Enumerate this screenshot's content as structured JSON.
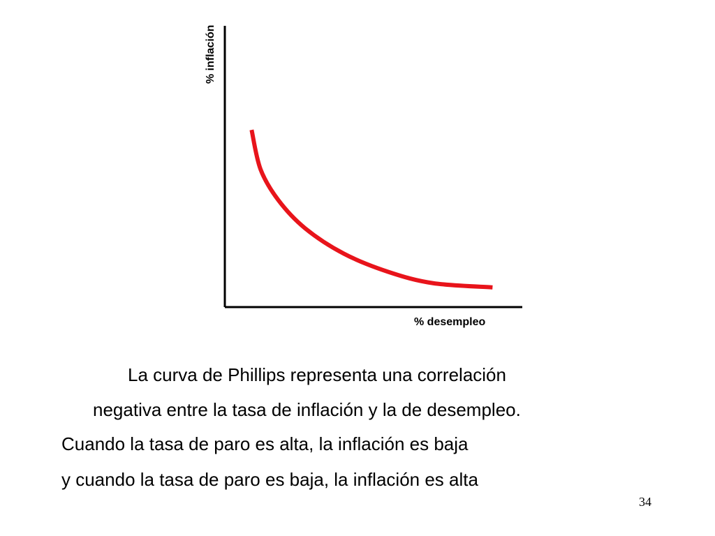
{
  "chart_data": {
    "type": "line",
    "title": "",
    "xlabel": "% desempleo",
    "ylabel": "% inflación",
    "grid": false,
    "legend": "none",
    "axis_ticks": false,
    "curve_color": "#e8141b",
    "axis_color": "#000000",
    "series": [
      {
        "x": [
          0.09,
          0.12,
          0.18,
          0.27,
          0.4,
          0.55,
          0.7,
          0.9
        ],
        "y": [
          0.63,
          0.49,
          0.38,
          0.28,
          0.19,
          0.125,
          0.085,
          0.07
        ]
      }
    ]
  },
  "caption": {
    "line1": "La curva de Phillips representa una correlación",
    "line2": "negativa entre la tasa de inflación y la de desempleo.",
    "line3": "Cuando la tasa de paro es alta, la inflación es baja",
    "line4": "y cuando la tasa de paro es baja, la inflación es alta"
  },
  "page_number": "34"
}
